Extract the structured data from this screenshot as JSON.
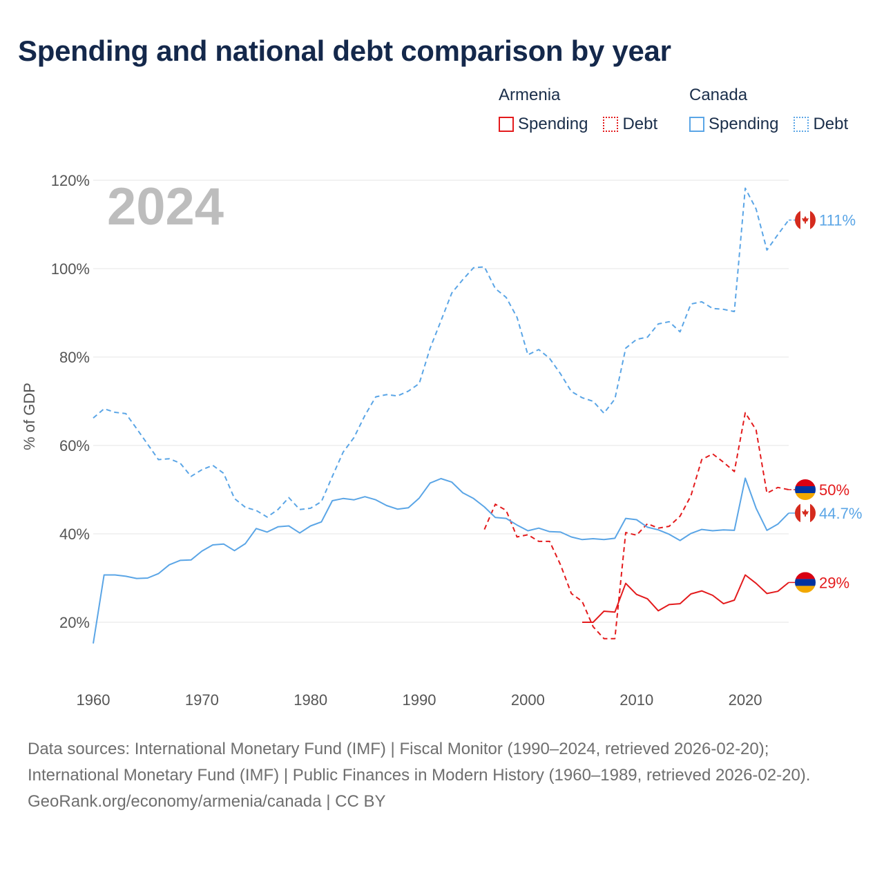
{
  "title": "Spending and national debt comparison by year",
  "legend": {
    "groups": [
      {
        "country": "Armenia",
        "spending_label": "Spending",
        "debt_label": "Debt",
        "color": "#e31a1c"
      },
      {
        "country": "Canada",
        "spending_label": "Spending",
        "debt_label": "Debt",
        "color": "#5aa5e6"
      }
    ]
  },
  "chart_data": {
    "type": "line",
    "title": "Spending and national debt comparison by year",
    "ylabel": "% of GDP",
    "xlabel": "",
    "xlim": [
      1960,
      2024
    ],
    "ylim": [
      8,
      125
    ],
    "yticks": [
      20,
      40,
      60,
      80,
      100,
      120
    ],
    "ytick_labels": [
      "20%",
      "40%",
      "60%",
      "80%",
      "100%",
      "120%"
    ],
    "xticks": [
      1960,
      1970,
      1980,
      1990,
      2000,
      2010,
      2020
    ],
    "xtick_labels": [
      "1960",
      "1970",
      "1980",
      "1990",
      "2000",
      "2010",
      "2020"
    ],
    "year_watermark": "2024",
    "series": [
      {
        "name": "Canada Debt",
        "country": "Canada",
        "kind": "debt",
        "color": "#5aa5e6",
        "dashed": true,
        "end_label": "111%",
        "x": [
          1960,
          1961,
          1962,
          1963,
          1964,
          1965,
          1966,
          1967,
          1968,
          1969,
          1970,
          1971,
          1972,
          1973,
          1974,
          1975,
          1976,
          1977,
          1978,
          1979,
          1980,
          1981,
          1982,
          1983,
          1984,
          1985,
          1986,
          1987,
          1988,
          1989,
          1990,
          1991,
          1992,
          1993,
          1994,
          1995,
          1996,
          1997,
          1998,
          1999,
          2000,
          2001,
          2002,
          2003,
          2004,
          2005,
          2006,
          2007,
          2008,
          2009,
          2010,
          2011,
          2012,
          2013,
          2014,
          2015,
          2016,
          2017,
          2018,
          2019,
          2020,
          2021,
          2022,
          2023,
          2024
        ],
        "values": [
          66.2,
          68.3,
          67.5,
          67.2,
          63.8,
          60.3,
          56.8,
          57.0,
          56.0,
          53.0,
          54.5,
          55.5,
          53.7,
          48.0,
          46.0,
          45.3,
          43.8,
          45.5,
          48.2,
          45.5,
          45.8,
          47.3,
          53.0,
          58.5,
          61.8,
          66.8,
          71.0,
          71.5,
          71.2,
          72.3,
          74.0,
          82.0,
          88.2,
          94.5,
          97.5,
          100.2,
          100.4,
          95.5,
          93.5,
          89.0,
          80.5,
          81.7,
          79.7,
          76.2,
          72.2,
          70.8,
          70.0,
          67.3,
          70.5,
          82.0,
          84.0,
          84.5,
          87.5,
          88.0,
          85.7,
          92.0,
          92.5,
          91.0,
          90.8,
          90.3,
          118.2,
          113.5,
          104.2,
          107.7,
          111.0
        ]
      },
      {
        "name": "Armenia Debt",
        "country": "Armenia",
        "kind": "debt",
        "color": "#e31a1c",
        "dashed": true,
        "end_label": "50%",
        "x": [
          1996,
          1997,
          1998,
          1999,
          2000,
          2001,
          2002,
          2003,
          2004,
          2005,
          2006,
          2007,
          2008,
          2009,
          2010,
          2011,
          2012,
          2013,
          2014,
          2015,
          2016,
          2017,
          2018,
          2019,
          2020,
          2021,
          2022,
          2023,
          2024
        ],
        "values": [
          41.0,
          46.7,
          45.3,
          39.3,
          39.8,
          38.3,
          38.3,
          33.0,
          26.5,
          24.7,
          19.0,
          16.3,
          16.3,
          40.3,
          39.7,
          42.3,
          41.3,
          41.7,
          44.0,
          48.6,
          56.8,
          58.1,
          56.2,
          54.1,
          67.4,
          63.5,
          49.2,
          50.5,
          50.0
        ]
      },
      {
        "name": "Canada Spending",
        "country": "Canada",
        "kind": "spending",
        "color": "#5aa5e6",
        "dashed": false,
        "end_label": "44.7%",
        "x": [
          1960,
          1961,
          1962,
          1963,
          1964,
          1965,
          1966,
          1967,
          1968,
          1969,
          1970,
          1971,
          1972,
          1973,
          1974,
          1975,
          1976,
          1977,
          1978,
          1979,
          1980,
          1981,
          1982,
          1983,
          1984,
          1985,
          1986,
          1987,
          1988,
          1989,
          1990,
          1991,
          1992,
          1993,
          1994,
          1995,
          1996,
          1997,
          1998,
          1999,
          2000,
          2001,
          2002,
          2003,
          2004,
          2005,
          2006,
          2007,
          2008,
          2009,
          2010,
          2011,
          2012,
          2013,
          2014,
          2015,
          2016,
          2017,
          2018,
          2019,
          2020,
          2021,
          2022,
          2023,
          2024
        ],
        "values": [
          15.2,
          30.7,
          30.7,
          30.4,
          29.9,
          30.0,
          31.0,
          33.0,
          34.0,
          34.1,
          36.1,
          37.5,
          37.7,
          36.2,
          37.8,
          41.2,
          40.4,
          41.6,
          41.8,
          40.2,
          41.8,
          42.7,
          47.5,
          48.0,
          47.7,
          48.4,
          47.7,
          46.4,
          45.6,
          45.9,
          48.1,
          51.5,
          52.5,
          51.7,
          49.3,
          48.0,
          46.1,
          43.7,
          43.5,
          42.0,
          40.7,
          41.3,
          40.5,
          40.4,
          39.3,
          38.7,
          38.9,
          38.7,
          39.0,
          43.5,
          43.2,
          41.5,
          40.9,
          39.9,
          38.5,
          40.1,
          41.0,
          40.7,
          40.9,
          40.8,
          52.6,
          45.8,
          40.8,
          42.2,
          44.7
        ]
      },
      {
        "name": "Armenia Spending",
        "country": "Armenia",
        "kind": "spending",
        "color": "#e31a1c",
        "dashed": false,
        "end_label": "29%",
        "x": [
          2005,
          2006,
          2007,
          2008,
          2009,
          2010,
          2011,
          2012,
          2013,
          2014,
          2015,
          2016,
          2017,
          2018,
          2019,
          2020,
          2021,
          2022,
          2023,
          2024
        ],
        "values": [
          20.0,
          20.0,
          22.5,
          22.3,
          28.8,
          26.3,
          25.3,
          22.6,
          24.0,
          24.2,
          26.4,
          27.1,
          26.1,
          24.2,
          25.0,
          30.7,
          28.8,
          26.5,
          27.0,
          29.0
        ]
      }
    ]
  },
  "footer": {
    "sources": "Data sources: International Monetary Fund (IMF) | Fiscal Monitor (1990–2024, retrieved 2026-02-20); International Monetary Fund (IMF) | Public Finances in Modern History (1960–1989, retrieved 2026-02-20).",
    "credit": "GeoRank.org/economy/armenia/canada | CC BY"
  }
}
